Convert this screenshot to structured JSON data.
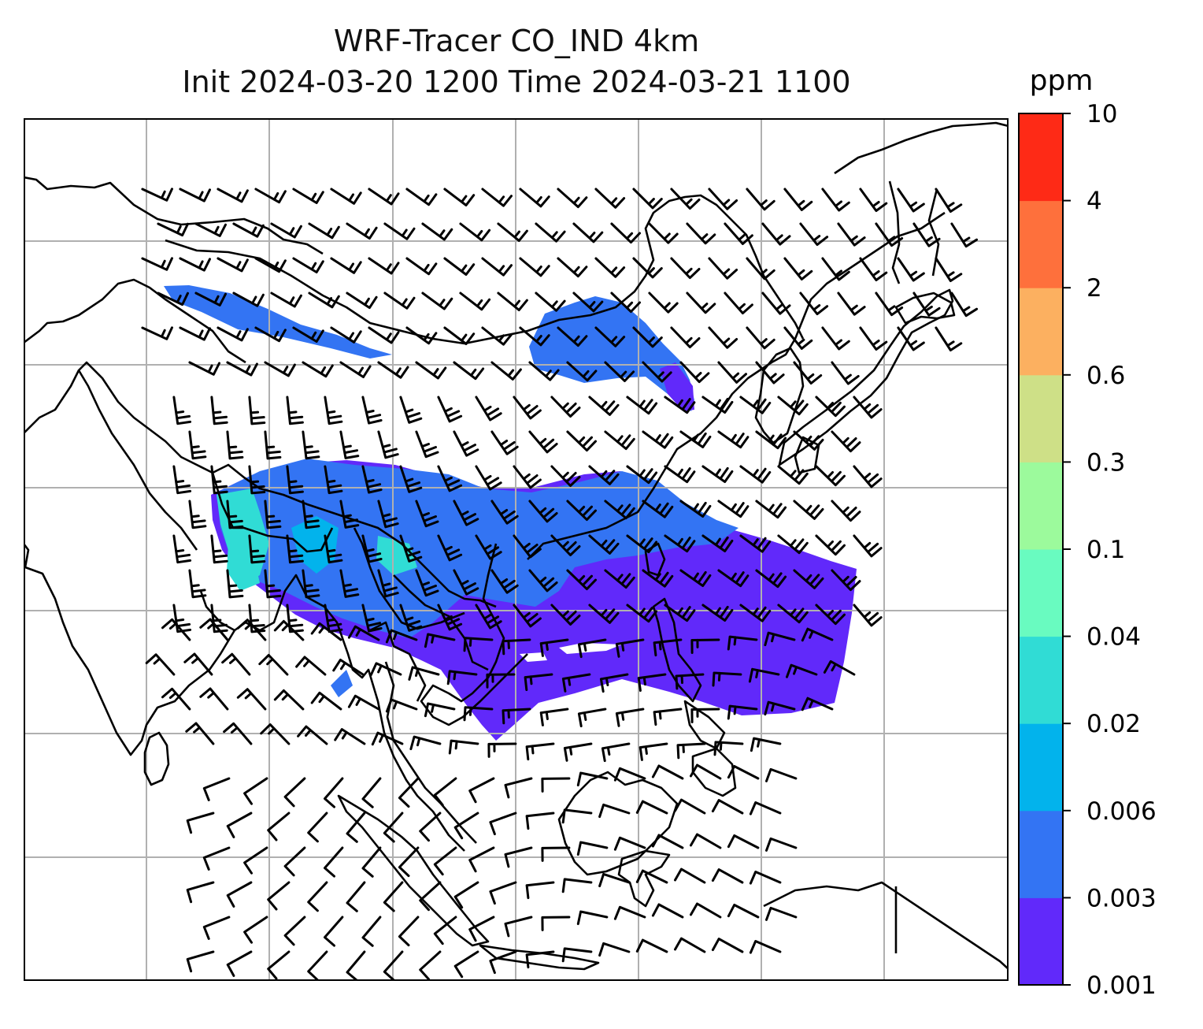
{
  "title": {
    "line1": "WRF-Tracer CO_IND 4km",
    "line2": "Init 2024-03-20 1200 Time 2024-03-21 1100"
  },
  "colorbar": {
    "unit": "ppm",
    "ticks": [
      "0.001",
      "0.003",
      "0.006",
      "0.02",
      "0.04",
      "0.1",
      "0.3",
      "0.6",
      "2",
      "4",
      "10"
    ],
    "colors": [
      "#6129fa",
      "#3374f3",
      "#02b3ec",
      "#30dcd5",
      "#69fbc0",
      "#9cfa9c",
      "#cee087",
      "#fcb060",
      "#fe703c",
      "#fe2a16"
    ]
  },
  "map": {
    "type": "filled-contour-with-wind-barbs",
    "region": "South and East Asia",
    "gridlines": true,
    "coastline_color": "#000000",
    "grid_color": "#b0b0b0"
  }
}
